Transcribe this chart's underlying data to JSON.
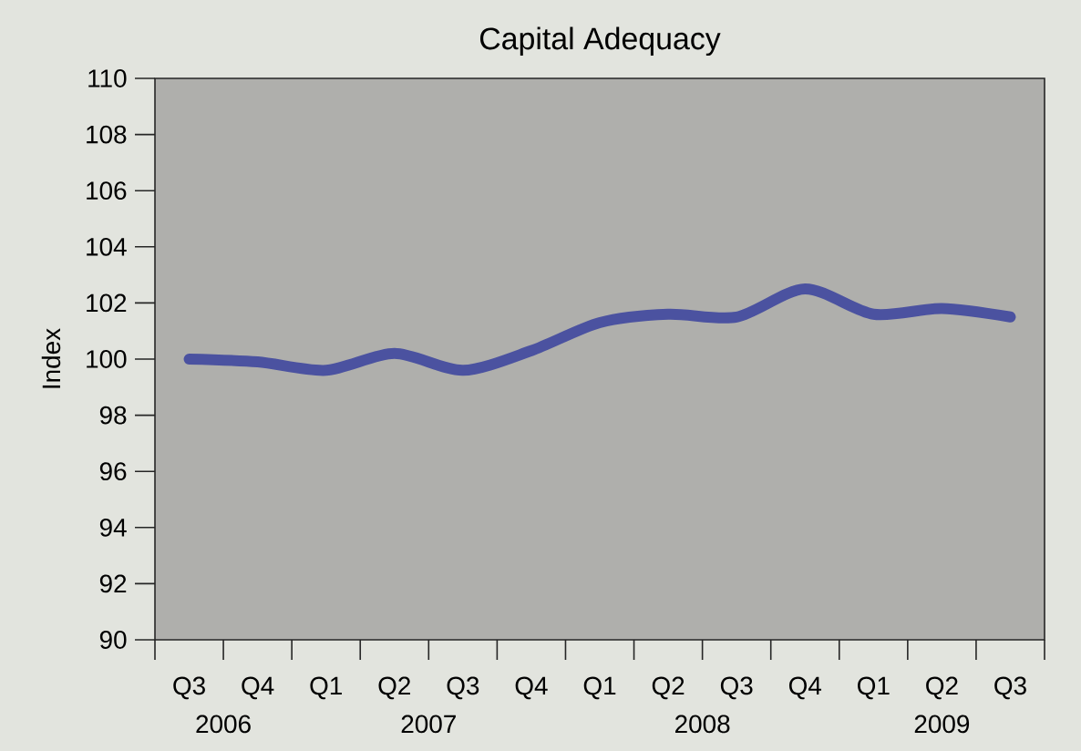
{
  "chart_data": {
    "type": "line",
    "title": "Capital Adequacy",
    "ylabel": "Index",
    "categories": [
      "Q3",
      "Q4",
      "Q1",
      "Q2",
      "Q3",
      "Q4",
      "Q1",
      "Q2",
      "Q3",
      "Q4",
      "Q1",
      "Q2",
      "Q3"
    ],
    "values": [
      100.0,
      99.9,
      99.6,
      100.2,
      99.6,
      100.3,
      101.3,
      101.6,
      101.5,
      102.5,
      101.6,
      101.8,
      101.5
    ],
    "color": "#4b52a0",
    "line_style": "solid",
    "ylim": [
      90,
      110
    ],
    "yticks": [
      90,
      92,
      94,
      96,
      98,
      100,
      102,
      104,
      106,
      108,
      110
    ],
    "annotations": [
      "2006",
      "2007",
      "2008",
      "2009"
    ]
  }
}
